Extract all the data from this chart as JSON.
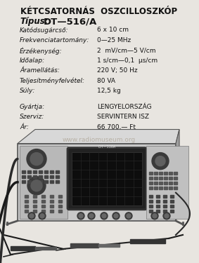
{
  "bg_color": "#e8e5e0",
  "title": "KÉTCSATORNÁS  OSZCILLOSZKÓP",
  "subtitle_label": "Típus:",
  "subtitle_value": "DT—516/A",
  "specs": [
    [
      "Katódsugárcső:",
      "6 x 10 cm"
    ],
    [
      "Frekvenciatartomány:",
      "0—25 MHz"
    ],
    [
      "Érzékenység:",
      "2  mV/cm—5 V/cm"
    ],
    [
      "Időalap:",
      "1 s/cm—0,1  μs/cm"
    ],
    [
      "Áramellátás:",
      "220 V; 50 Hz"
    ],
    [
      "Teljesítményfelvétel:",
      "80 VA"
    ],
    [
      "Súly:",
      "12,5 kg"
    ]
  ],
  "specs2": [
    [
      "Gyártja:",
      "LENGYELORSZÁG"
    ],
    [
      "Szerviz:",
      "SERVINTERN ISZ"
    ],
    [
      "Ár:",
      "66 700,— Ft"
    ]
  ],
  "watermark": "www.radiomuseum.org",
  "title_fontsize": 8.5,
  "subtitle_label_fontsize": 8.5,
  "subtitle_value_fontsize": 9.5,
  "spec_fontsize": 6.5,
  "spec2_fontsize": 6.5
}
